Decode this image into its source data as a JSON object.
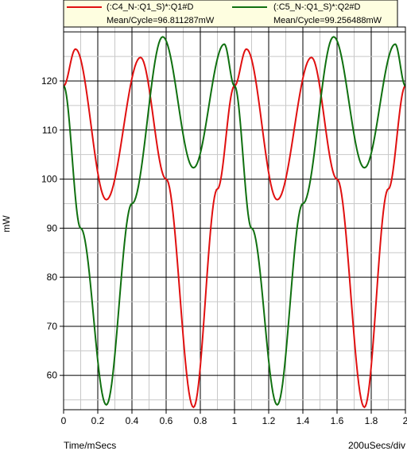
{
  "chart_data": {
    "type": "line",
    "xlabel": "Time/mSecs",
    "ylabel": "mW",
    "scale_note": "200uSecs/div",
    "xlim": [
      0,
      2
    ],
    "ylim": [
      53,
      131
    ],
    "x_ticks": [
      "0",
      "0.2",
      "0.4",
      "0.6",
      "0.8",
      "1",
      "1.2",
      "1.4",
      "1.6",
      "1.8",
      "2"
    ],
    "y_ticks": [
      "60",
      "70",
      "80",
      "90",
      "100",
      "110",
      "120"
    ],
    "grid": true,
    "legend_position": "top",
    "series": [
      {
        "name": "(:C4_N-:Q1_S)*:Q1#D",
        "stat": "Mean/Cycle=96.811287mW",
        "color": "#e01010",
        "x": [
          0,
          0.07,
          0.25,
          0.45,
          0.6,
          0.76,
          0.9,
          1.0,
          1.07,
          1.25,
          1.45,
          1.6,
          1.76,
          1.9,
          2.0
        ],
        "y": [
          119,
          126.5,
          95.8,
          124.8,
          100,
          53.5,
          98,
          119,
          126.5,
          95.8,
          124.8,
          100,
          53.5,
          98,
          119
        ]
      },
      {
        "name": "(:C5_N-:Q1_S)*:Q2#D",
        "stat": "Mean/Cycle=99.256488mW",
        "color": "#107010",
        "x": [
          0,
          0.1,
          0.25,
          0.4,
          0.58,
          0.76,
          0.94,
          1.0,
          1.1,
          1.25,
          1.4,
          1.58,
          1.76,
          1.94,
          2.0
        ],
        "y": [
          119,
          90,
          54,
          95,
          129,
          102.3,
          127.5,
          119,
          90,
          54,
          95,
          129,
          102.3,
          127.5,
          119
        ]
      }
    ]
  }
}
